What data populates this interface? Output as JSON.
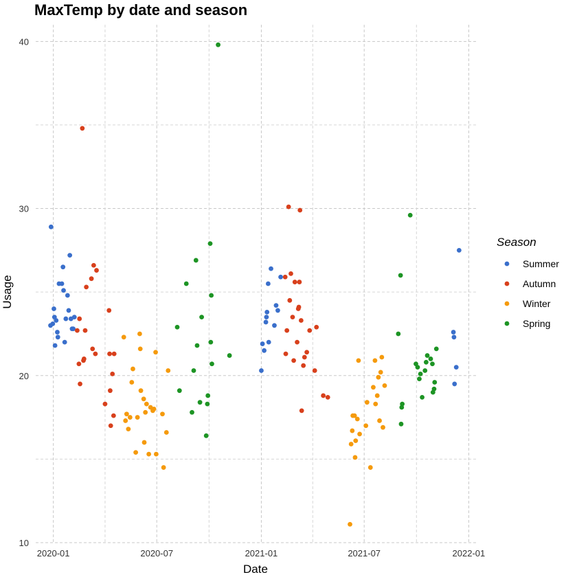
{
  "chart_data": {
    "type": "scatter",
    "title": "MaxTemp by date and season",
    "xlabel": "Date",
    "ylabel": "Usage",
    "xlim": [
      "2019-12-01",
      "2022-01-15"
    ],
    "ylim": [
      10,
      41
    ],
    "x_ticks": [
      "2020-01",
      "2020-07",
      "2021-01",
      "2021-07",
      "2022-01"
    ],
    "y_ticks": [
      10,
      20,
      30,
      40
    ],
    "grid": true,
    "legend": {
      "title": "Season",
      "position": "right"
    },
    "colors": {
      "Summer": "#3a6fcb",
      "Autumn": "#d8401c",
      "Winter": "#f59a0c",
      "Spring": "#1d9424"
    },
    "series": [
      {
        "name": "Summer",
        "points": [
          [
            "2019-12-27",
            23.0
          ],
          [
            "2019-12-28",
            28.9
          ],
          [
            "2019-12-31",
            23.1
          ],
          [
            "2020-01-02",
            24.0
          ],
          [
            "2020-01-03",
            23.5
          ],
          [
            "2020-01-04",
            21.8
          ],
          [
            "2020-01-06",
            23.3
          ],
          [
            "2020-01-08",
            22.6
          ],
          [
            "2020-01-09",
            22.3
          ],
          [
            "2020-01-11",
            25.5
          ],
          [
            "2020-01-16",
            25.5
          ],
          [
            "2020-01-18",
            26.5
          ],
          [
            "2020-01-19",
            25.1
          ],
          [
            "2020-01-21",
            22.0
          ],
          [
            "2020-01-23",
            23.4
          ],
          [
            "2020-01-26",
            24.8
          ],
          [
            "2020-01-28",
            23.9
          ],
          [
            "2020-01-30",
            27.2
          ],
          [
            "2020-02-01",
            23.4
          ],
          [
            "2020-02-03",
            22.8
          ],
          [
            "2020-02-05",
            22.8
          ],
          [
            "2020-02-07",
            23.5
          ],
          [
            "2021-01-01",
            20.3
          ],
          [
            "2021-01-03",
            21.9
          ],
          [
            "2021-01-06",
            21.5
          ],
          [
            "2021-01-09",
            23.2
          ],
          [
            "2021-01-10",
            23.5
          ],
          [
            "2021-01-11",
            23.8
          ],
          [
            "2021-01-13",
            25.5
          ],
          [
            "2021-01-14",
            22.0
          ],
          [
            "2021-01-18",
            26.4
          ],
          [
            "2021-01-24",
            23.0
          ],
          [
            "2021-01-27",
            24.2
          ],
          [
            "2021-01-30",
            23.9
          ],
          [
            "2021-02-04",
            25.9
          ],
          [
            "2021-12-05",
            22.6
          ],
          [
            "2021-12-06",
            22.3
          ],
          [
            "2021-12-07",
            19.5
          ],
          [
            "2021-12-10",
            20.5
          ],
          [
            "2021-12-15",
            27.5
          ]
        ]
      },
      {
        "name": "Autumn",
        "points": [
          [
            "2020-02-12",
            22.7
          ],
          [
            "2020-02-15",
            20.7
          ],
          [
            "2020-02-16",
            23.4
          ],
          [
            "2020-02-17",
            19.5
          ],
          [
            "2020-02-21",
            34.8
          ],
          [
            "2020-02-23",
            20.9
          ],
          [
            "2020-02-24",
            21.0
          ],
          [
            "2020-02-26",
            22.7
          ],
          [
            "2020-02-28",
            25.3
          ],
          [
            "2020-03-08",
            25.8
          ],
          [
            "2020-03-10",
            21.6
          ],
          [
            "2020-03-12",
            26.6
          ],
          [
            "2020-03-15",
            21.3
          ],
          [
            "2020-03-17",
            26.3
          ],
          [
            "2020-04-01",
            18.3
          ],
          [
            "2020-04-08",
            23.9
          ],
          [
            "2020-04-09",
            21.3
          ],
          [
            "2020-04-10",
            19.1
          ],
          [
            "2020-04-11",
            17.0
          ],
          [
            "2020-04-14",
            20.1
          ],
          [
            "2020-04-16",
            17.6
          ],
          [
            "2020-04-17",
            21.3
          ],
          [
            "2021-02-12",
            25.9
          ],
          [
            "2021-02-13",
            21.3
          ],
          [
            "2021-02-15",
            22.7
          ],
          [
            "2021-02-18",
            30.1
          ],
          [
            "2021-02-20",
            24.5
          ],
          [
            "2021-02-22",
            26.1
          ],
          [
            "2021-02-25",
            23.5
          ],
          [
            "2021-02-27",
            20.9
          ],
          [
            "2021-03-01",
            25.6
          ],
          [
            "2021-03-05",
            22.0
          ],
          [
            "2021-03-07",
            24.0
          ],
          [
            "2021-03-08",
            24.1
          ],
          [
            "2021-03-09",
            25.6
          ],
          [
            "2021-03-10",
            29.9
          ],
          [
            "2021-03-12",
            23.3
          ],
          [
            "2021-03-13",
            17.9
          ],
          [
            "2021-03-16",
            20.6
          ],
          [
            "2021-03-18",
            21.1
          ],
          [
            "2021-03-22",
            21.4
          ],
          [
            "2021-03-27",
            22.7
          ],
          [
            "2021-04-05",
            20.3
          ],
          [
            "2021-04-08",
            22.9
          ],
          [
            "2021-04-20",
            18.8
          ],
          [
            "2021-04-28",
            18.7
          ]
        ]
      },
      {
        "name": "Winter",
        "points": [
          [
            "2020-05-04",
            22.3
          ],
          [
            "2020-05-07",
            17.3
          ],
          [
            "2020-05-09",
            17.7
          ],
          [
            "2020-05-12",
            16.8
          ],
          [
            "2020-05-15",
            17.5
          ],
          [
            "2020-05-18",
            19.6
          ],
          [
            "2020-05-20",
            20.4
          ],
          [
            "2020-05-25",
            15.4
          ],
          [
            "2020-05-28",
            17.5
          ],
          [
            "2020-06-01",
            22.5
          ],
          [
            "2020-06-02",
            21.6
          ],
          [
            "2020-06-03",
            19.1
          ],
          [
            "2020-06-08",
            18.6
          ],
          [
            "2020-06-09",
            16.0
          ],
          [
            "2020-06-11",
            17.8
          ],
          [
            "2020-06-13",
            18.3
          ],
          [
            "2020-06-17",
            15.3
          ],
          [
            "2020-06-20",
            18.1
          ],
          [
            "2020-06-24",
            17.9
          ],
          [
            "2020-06-26",
            18.0
          ],
          [
            "2020-06-29",
            21.4
          ],
          [
            "2020-06-30",
            15.3
          ],
          [
            "2020-07-11",
            17.7
          ],
          [
            "2020-07-13",
            14.5
          ],
          [
            "2020-07-18",
            16.6
          ],
          [
            "2020-07-21",
            20.3
          ],
          [
            "2021-06-06",
            11.1
          ],
          [
            "2021-06-08",
            15.9
          ],
          [
            "2021-06-10",
            16.7
          ],
          [
            "2021-06-11",
            17.6
          ],
          [
            "2021-06-14",
            17.6
          ],
          [
            "2021-06-15",
            15.1
          ],
          [
            "2021-06-16",
            16.1
          ],
          [
            "2021-06-19",
            17.4
          ],
          [
            "2021-06-21",
            20.9
          ],
          [
            "2021-06-23",
            16.5
          ],
          [
            "2021-07-04",
            17.0
          ],
          [
            "2021-07-06",
            18.4
          ],
          [
            "2021-07-12",
            14.5
          ],
          [
            "2021-07-17",
            19.3
          ],
          [
            "2021-07-20",
            20.9
          ],
          [
            "2021-07-21",
            18.3
          ],
          [
            "2021-07-24",
            18.8
          ],
          [
            "2021-07-26",
            19.9
          ],
          [
            "2021-07-28",
            17.3
          ],
          [
            "2021-07-30",
            20.2
          ],
          [
            "2021-08-01",
            21.1
          ],
          [
            "2021-08-03",
            16.9
          ],
          [
            "2021-08-06",
            19.4
          ]
        ]
      },
      {
        "name": "Spring",
        "points": [
          [
            "2020-08-06",
            22.9
          ],
          [
            "2020-08-10",
            19.1
          ],
          [
            "2020-08-22",
            25.5
          ],
          [
            "2020-09-01",
            17.8
          ],
          [
            "2020-09-04",
            20.3
          ],
          [
            "2020-09-08",
            26.9
          ],
          [
            "2020-09-10",
            21.8
          ],
          [
            "2020-09-15",
            18.4
          ],
          [
            "2020-09-18",
            23.5
          ],
          [
            "2020-09-26",
            16.4
          ],
          [
            "2020-09-28",
            18.3
          ],
          [
            "2020-09-29",
            18.8
          ],
          [
            "2020-10-03",
            27.9
          ],
          [
            "2020-10-04",
            22.0
          ],
          [
            "2020-10-05",
            24.8
          ],
          [
            "2020-10-06",
            20.7
          ],
          [
            "2020-10-17",
            39.8
          ],
          [
            "2020-11-06",
            21.2
          ],
          [
            "2021-08-30",
            22.5
          ],
          [
            "2021-09-03",
            26.0
          ],
          [
            "2021-09-04",
            17.1
          ],
          [
            "2021-09-05",
            18.1
          ],
          [
            "2021-09-06",
            18.3
          ],
          [
            "2021-09-20",
            29.6
          ],
          [
            "2021-09-30",
            20.7
          ],
          [
            "2021-10-03",
            20.5
          ],
          [
            "2021-10-06",
            19.8
          ],
          [
            "2021-10-08",
            20.1
          ],
          [
            "2021-10-11",
            18.7
          ],
          [
            "2021-10-16",
            20.3
          ],
          [
            "2021-10-18",
            20.8
          ],
          [
            "2021-10-20",
            21.2
          ],
          [
            "2021-10-26",
            21.0
          ],
          [
            "2021-10-29",
            20.7
          ],
          [
            "2021-10-30",
            19.0
          ],
          [
            "2021-11-01",
            19.2
          ],
          [
            "2021-11-02",
            19.6
          ],
          [
            "2021-11-05",
            21.6
          ]
        ]
      }
    ]
  }
}
